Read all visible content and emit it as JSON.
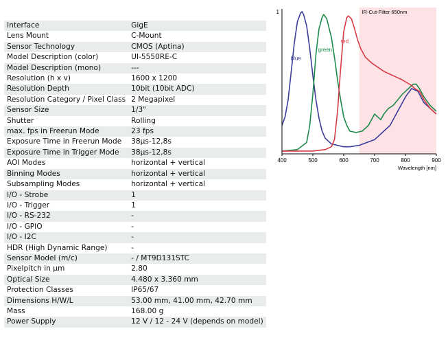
{
  "specs": [
    {
      "key": "Interface",
      "value": "GigE"
    },
    {
      "key": "Lens Mount",
      "value": "C-Mount"
    },
    {
      "key": "Sensor Technology",
      "value": "CMOS (Aptina)"
    },
    {
      "key": "Model Description (color)",
      "value": "UI-5550RE-C"
    },
    {
      "key": "Model Description (mono)",
      "value": "---"
    },
    {
      "key": "Resolution (h x v)",
      "value": "1600 x 1200"
    },
    {
      "key": "Resolution Depth",
      "value": "10bit (10bit ADC)"
    },
    {
      "key": "Resolution Category / Pixel Class",
      "value": "2 Megapixel"
    },
    {
      "key": "Sensor Size",
      "value": "1/3\""
    },
    {
      "key": "Shutter",
      "value": "Rolling"
    },
    {
      "key": "max. fps in Freerun Mode",
      "value": "23 fps"
    },
    {
      "key": "Exposure Time in Freerun Mode",
      "value": "38µs-12,8s"
    },
    {
      "key": "Exposure Time in Trigger Mode",
      "value": "38µs-12,8s"
    },
    {
      "key": "AOI Modes",
      "value": "horizontal + vertical"
    },
    {
      "key": "Binning Modes",
      "value": "horizontal + vertical"
    },
    {
      "key": "Subsampling Modes",
      "value": "horizontal + vertical"
    },
    {
      "key": "I/O - Strobe",
      "value": "1"
    },
    {
      "key": "I/O - Trigger",
      "value": "1"
    },
    {
      "key": "I/O - RS-232",
      "value": "-"
    },
    {
      "key": "I/O - GPIO",
      "value": "-"
    },
    {
      "key": "I/O - I2C",
      "value": "-"
    },
    {
      "key": "HDR (High Dynamic Range)",
      "value": "-"
    },
    {
      "key": "Sensor Model (m/c)",
      "value": "- / MT9D131STC"
    },
    {
      "key": "Pixelpitch in µm",
      "value": "2.80"
    },
    {
      "key": "Optical Size",
      "value": "4.480 x 3.360 mm"
    },
    {
      "key": "Protection Classes",
      "value": "IP65/67"
    },
    {
      "key": "Dimensions H/W/L",
      "value": "53.00 mm, 41.00 mm, 42.70 mm"
    },
    {
      "key": "Mass",
      "value": "168.00 g"
    },
    {
      "key": "Power Supply",
      "value": "12 V / 12 - 24 V (depends on model)"
    }
  ],
  "chart_data": {
    "type": "line",
    "xlabel": "Wavelength [nm]",
    "ylabel": "",
    "xlim": [
      400,
      900
    ],
    "ylim": [
      0,
      1
    ],
    "x_ticks": [
      "400",
      "500",
      "600",
      "700",
      "800",
      "900"
    ],
    "y_tick_label": "1",
    "annotation": "IR-Cut-Filter 650nm",
    "ir_cut_from": 650,
    "ir_cut_color": "#fde3e6",
    "series": [
      {
        "name": "blue",
        "color": "#3c3c9a",
        "points": [
          [
            400,
            0.2
          ],
          [
            410,
            0.26
          ],
          [
            420,
            0.38
          ],
          [
            430,
            0.58
          ],
          [
            440,
            0.78
          ],
          [
            450,
            0.93
          ],
          [
            460,
            0.99
          ],
          [
            465,
            1.0
          ],
          [
            470,
            0.98
          ],
          [
            480,
            0.9
          ],
          [
            490,
            0.74
          ],
          [
            500,
            0.55
          ],
          [
            510,
            0.38
          ],
          [
            520,
            0.25
          ],
          [
            530,
            0.16
          ],
          [
            540,
            0.11
          ],
          [
            560,
            0.07
          ],
          [
            580,
            0.06
          ],
          [
            600,
            0.05
          ],
          [
            620,
            0.05
          ],
          [
            650,
            0.06
          ],
          [
            700,
            0.1
          ],
          [
            750,
            0.2
          ],
          [
            780,
            0.32
          ],
          [
            800,
            0.4
          ],
          [
            820,
            0.46
          ],
          [
            840,
            0.44
          ],
          [
            860,
            0.36
          ],
          [
            880,
            0.32
          ],
          [
            900,
            0.28
          ]
        ]
      },
      {
        "name": "green",
        "color": "#1e8a4a",
        "points": [
          [
            400,
            0.02
          ],
          [
            450,
            0.03
          ],
          [
            480,
            0.08
          ],
          [
            490,
            0.2
          ],
          [
            500,
            0.42
          ],
          [
            510,
            0.7
          ],
          [
            520,
            0.88
          ],
          [
            530,
            0.96
          ],
          [
            535,
            0.98
          ],
          [
            545,
            0.95
          ],
          [
            560,
            0.82
          ],
          [
            570,
            0.68
          ],
          [
            580,
            0.52
          ],
          [
            590,
            0.38
          ],
          [
            600,
            0.26
          ],
          [
            610,
            0.2
          ],
          [
            620,
            0.16
          ],
          [
            640,
            0.15
          ],
          [
            660,
            0.16
          ],
          [
            680,
            0.2
          ],
          [
            690,
            0.24
          ],
          [
            700,
            0.28
          ],
          [
            710,
            0.26
          ],
          [
            720,
            0.24
          ],
          [
            730,
            0.28
          ],
          [
            745,
            0.32
          ],
          [
            760,
            0.34
          ],
          [
            775,
            0.38
          ],
          [
            790,
            0.42
          ],
          [
            800,
            0.44
          ],
          [
            810,
            0.46
          ],
          [
            825,
            0.49
          ],
          [
            835,
            0.49
          ],
          [
            845,
            0.46
          ],
          [
            860,
            0.4
          ],
          [
            880,
            0.34
          ],
          [
            900,
            0.3
          ]
        ]
      },
      {
        "name": "red",
        "color": "#d83a44",
        "points": [
          [
            400,
            0.02
          ],
          [
            500,
            0.02
          ],
          [
            540,
            0.03
          ],
          [
            560,
            0.05
          ],
          [
            570,
            0.1
          ],
          [
            580,
            0.3
          ],
          [
            590,
            0.6
          ],
          [
            600,
            0.86
          ],
          [
            610,
            0.96
          ],
          [
            615,
            0.97
          ],
          [
            625,
            0.95
          ],
          [
            635,
            0.88
          ],
          [
            645,
            0.8
          ],
          [
            655,
            0.74
          ],
          [
            670,
            0.68
          ],
          [
            690,
            0.64
          ],
          [
            710,
            0.61
          ],
          [
            730,
            0.58
          ],
          [
            750,
            0.56
          ],
          [
            770,
            0.54
          ],
          [
            790,
            0.52
          ],
          [
            805,
            0.5
          ],
          [
            820,
            0.48
          ],
          [
            830,
            0.46
          ],
          [
            845,
            0.44
          ],
          [
            860,
            0.38
          ],
          [
            880,
            0.32
          ],
          [
            900,
            0.28
          ]
        ]
      }
    ]
  }
}
